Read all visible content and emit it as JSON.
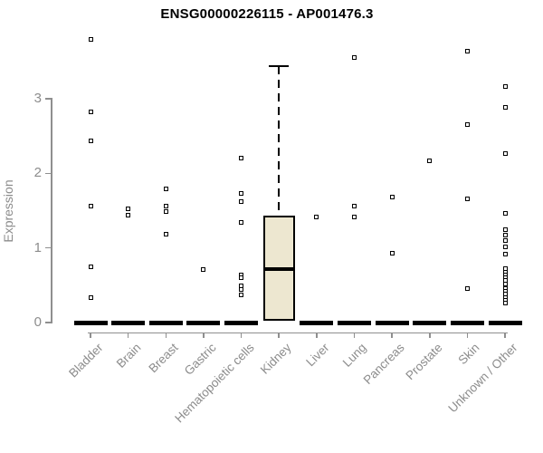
{
  "title": "ENSG00000226115 - AP001476.3",
  "colors": {
    "box_fill": "#EDE7D0",
    "point_color": "#000000",
    "axis_color": "#8F8F8F",
    "axis_text_color": "#8C8C8C",
    "title_color": "#000000"
  },
  "chart_data": {
    "type": "boxplot",
    "title": "ENSG00000226115 - AP001476.3",
    "xlabel": "",
    "ylabel": "Expression",
    "ylim": [
      0,
      3.9
    ],
    "yticks": [
      0,
      1,
      2,
      3
    ],
    "grid": false,
    "legend": null,
    "categories": [
      "Bladder",
      "Brain",
      "Breast",
      "Gastric",
      "Hematopoietic cells",
      "Kidney",
      "Liver",
      "Lung",
      "Pancreas",
      "Prostate",
      "Skin",
      "Unknown / Other"
    ],
    "series": [
      {
        "category": "Bladder",
        "points": [
          3.8,
          2.82,
          2.44,
          1.56,
          0.75,
          0.34
        ],
        "zero_cluster": true
      },
      {
        "category": "Brain",
        "points": [
          1.53,
          1.44
        ],
        "zero_cluster": true
      },
      {
        "category": "Breast",
        "points": [
          1.79,
          1.56,
          1.49,
          1.18
        ],
        "zero_cluster": true
      },
      {
        "category": "Gastric",
        "points": [
          0.71
        ],
        "zero_cluster": true
      },
      {
        "category": "Hematopoietic cells",
        "points": [
          2.21,
          1.73,
          1.62,
          1.34,
          0.64,
          0.6,
          0.49,
          0.44,
          0.37
        ],
        "zero_cluster": true
      },
      {
        "category": "Kidney",
        "points": [],
        "zero_cluster": false,
        "box": {
          "whisker_high": 3.44,
          "q3": 1.43,
          "median": 0.72,
          "q1": 0.02,
          "whisker_low": null
        }
      },
      {
        "category": "Liver",
        "points": [
          1.41
        ],
        "zero_cluster": true
      },
      {
        "category": "Lung",
        "points": [
          3.55,
          1.56,
          1.41
        ],
        "zero_cluster": true
      },
      {
        "category": "Pancreas",
        "points": [
          1.68,
          0.93
        ],
        "zero_cluster": true
      },
      {
        "category": "Prostate",
        "points": [
          2.17
        ],
        "zero_cluster": true
      },
      {
        "category": "Skin",
        "points": [
          3.64,
          2.66,
          1.66,
          0.45
        ],
        "zero_cluster": true
      },
      {
        "category": "Unknown / Other",
        "points": [
          3.16,
          2.88,
          2.26,
          1.46,
          1.25,
          1.17,
          1.1,
          1.02,
          0.92,
          0.72,
          0.68,
          0.64,
          0.6,
          0.56,
          0.52,
          0.46,
          0.42,
          0.38,
          0.34,
          0.3,
          0.26
        ],
        "zero_cluster": true
      }
    ]
  }
}
